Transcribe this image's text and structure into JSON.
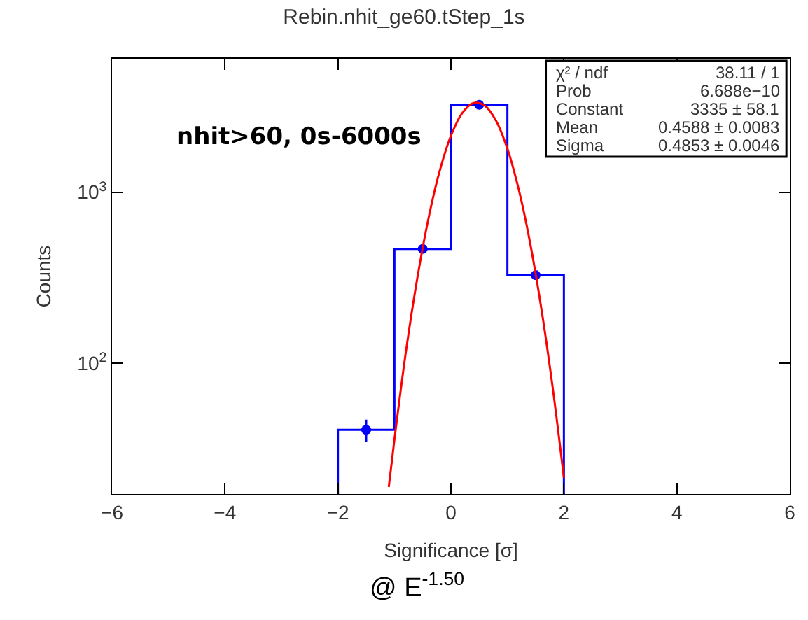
{
  "chart_data": {
    "type": "histogram",
    "title": "Rebin.nhit_ge60.tStep_1s",
    "xlabel": "Significance [σ]",
    "ylabel": "Counts",
    "bins": [
      -2,
      -1,
      0,
      1,
      2
    ],
    "values": [
      41,
      466,
      3230,
      328
    ],
    "color": "#0000ff",
    "series": [
      {
        "type": "scatter",
        "color": "#0000ff",
        "marker": "circle",
        "x": [
          -1.5,
          -0.5,
          0.5,
          1.5
        ],
        "values": [
          41,
          466,
          3230,
          328
        ],
        "errors": [
          6,
          null,
          null,
          null
        ]
      },
      {
        "type": "line",
        "color": "#ff0000",
        "marker": "none",
        "x": [
          -1.1,
          -1.0,
          -0.8,
          -0.6,
          -0.4,
          -0.2,
          0,
          0.2,
          0.4,
          0.6,
          0.8,
          1.0,
          1.2,
          1.4,
          1.6,
          1.8,
          2.0
        ],
        "values": [
          19,
          36,
          115,
          308,
          697,
          1326,
          2133,
          2894,
          3311,
          3197,
          2605,
          1791,
          1039,
          509,
          210,
          73,
          21.5
        ]
      }
    ],
    "log": "y",
    "xlim": [
      -6,
      6
    ],
    "ylim": [
      17.3,
      6000
    ],
    "xticks": [
      {
        "value": -6,
        "label": "−6"
      },
      {
        "value": -4,
        "label": "−4"
      },
      {
        "value": -2,
        "label": "−2"
      },
      0,
      2,
      4,
      6
    ],
    "yticks": [
      {
        "value": 100,
        "label": "10$^{2}$"
      },
      {
        "value": 1000,
        "label": "10$^{3}$"
      }
    ],
    "annotations": [
      "χ² / ndf",
      "38.11 / 1",
      "Prob",
      "6.688e−10",
      "Constant",
      "3335 ± 58.1",
      "Mean",
      "0.4588 ± 0.0083",
      "Sigma",
      "0.4853 ± 0.0046",
      "nhit>60, 0s-6000s",
      "@ E$^{-1.50}$"
    ]
  }
}
